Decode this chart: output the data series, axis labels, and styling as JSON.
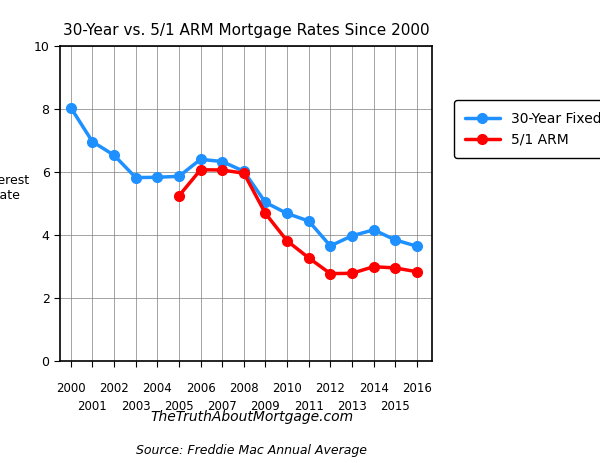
{
  "title": "30-Year vs. 5/1 ARM Mortgage Rates Since 2000",
  "xlabel_website": "TheTruthAboutMortgage.com",
  "xlabel_source": "Source: Freddie Mac Annual Average",
  "ylabel": "Interest\nRate",
  "years_30yr": [
    2000,
    2001,
    2002,
    2003,
    2004,
    2005,
    2006,
    2007,
    2008,
    2009,
    2010,
    2011,
    2012,
    2013,
    2014,
    2015,
    2016
  ],
  "rates_30yr": [
    8.05,
    6.97,
    6.54,
    5.83,
    5.84,
    5.87,
    6.41,
    6.34,
    6.03,
    5.04,
    4.69,
    4.45,
    3.66,
    3.98,
    4.17,
    3.85,
    3.65
  ],
  "years_arm": [
    2005,
    2006,
    2007,
    2008,
    2009,
    2010,
    2011,
    2012,
    2013,
    2014,
    2015,
    2016
  ],
  "rates_arm": [
    5.25,
    6.08,
    6.07,
    5.97,
    4.69,
    3.82,
    3.28,
    2.78,
    2.79,
    3.0,
    2.96,
    2.84
  ],
  "color_30yr": "#1E90FF",
  "color_arm": "#FF0000",
  "ylim": [
    0,
    10
  ],
  "yticks": [
    0,
    2,
    4,
    6,
    8,
    10
  ],
  "xticks_even": [
    2000,
    2002,
    2004,
    2006,
    2008,
    2010,
    2012,
    2014,
    2016
  ],
  "xticks_odd": [
    2001,
    2003,
    2005,
    2007,
    2009,
    2011,
    2013,
    2015
  ],
  "legend_30yr": "30-Year Fixed",
  "legend_arm": "5/1 ARM",
  "linewidth": 2.5,
  "markersize": 7,
  "xlim_left": 1999.5,
  "xlim_right": 2016.7
}
